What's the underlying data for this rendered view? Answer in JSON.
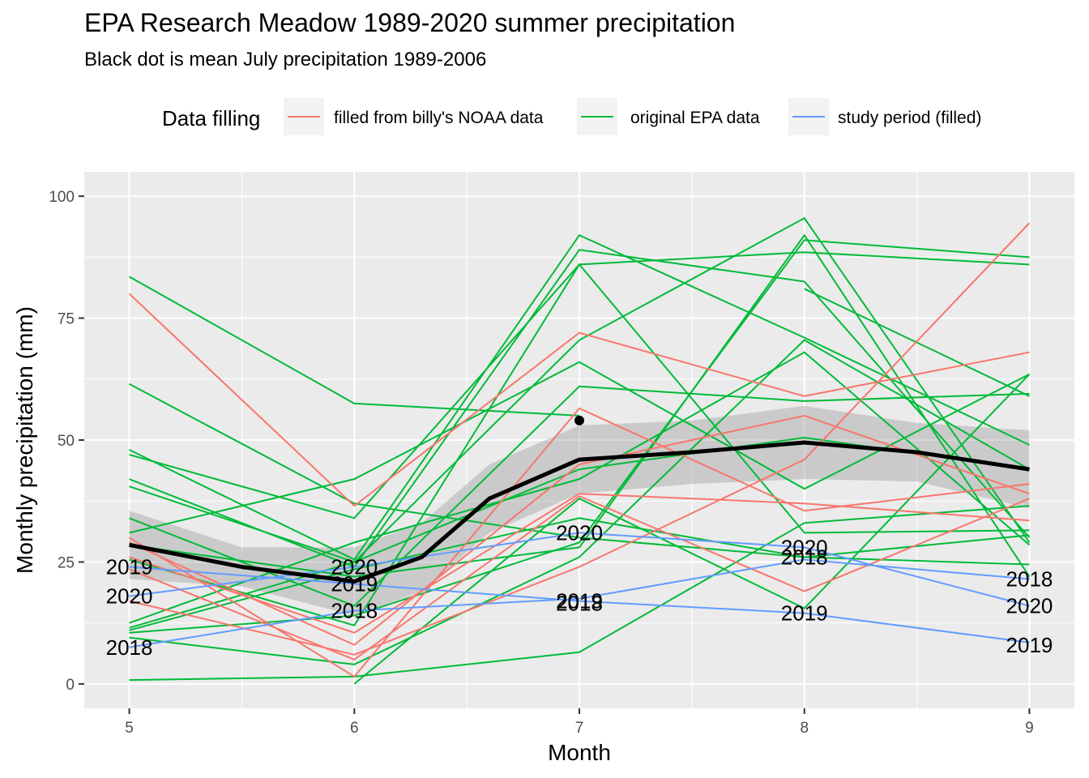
{
  "chart_data": {
    "type": "line",
    "title": "EPA Research Meadow 1989-2020 summer precipitation",
    "subtitle": "Black dot is mean July precipitation 1989-2006",
    "xlabel": "Month",
    "ylabel": "Monthly precipitation (mm)",
    "x": [
      5,
      6,
      7,
      8,
      9
    ],
    "x_ticks": [
      "5",
      "6",
      "7",
      "8",
      "9"
    ],
    "y_ticks": [
      "0",
      "25",
      "50",
      "75",
      "100"
    ],
    "xlim": [
      4.8,
      9.2
    ],
    "ylim": [
      -5,
      105
    ],
    "grid": true,
    "legend": {
      "title": "Data filling",
      "position": "top",
      "entries": [
        {
          "label": "filled from billy's NOAA data",
          "color": "#F8766D"
        },
        {
          "label": "original EPA data",
          "color": "#00BA38"
        },
        {
          "label": "study period (filled)",
          "color": "#619CFF"
        }
      ]
    },
    "series": [
      {
        "group": "original EPA data",
        "values": [
          83.5,
          57.5,
          55,
          null,
          null
        ]
      },
      {
        "group": "original EPA data",
        "values": [
          61.5,
          37,
          30,
          26,
          24.5
        ]
      },
      {
        "group": "original EPA data",
        "values": [
          48,
          25.5,
          92,
          71,
          49
        ]
      },
      {
        "group": "original EPA data",
        "values": [
          47,
          34,
          86,
          88.5,
          86
        ]
      },
      {
        "group": "original EPA data",
        "values": [
          42,
          24,
          89,
          82.5,
          30
        ]
      },
      {
        "group": "original EPA data",
        "values": [
          40.5,
          25,
          70.5,
          95.5,
          29
        ]
      },
      {
        "group": "original EPA data",
        "values": [
          34,
          16,
          61,
          58,
          59.5
        ]
      },
      {
        "group": "original EPA data",
        "values": [
          31,
          42,
          66,
          40,
          63.5
        ]
      },
      {
        "group": "original EPA data",
        "values": [
          28.5,
          22,
          28,
          92,
          22
        ]
      },
      {
        "group": "original EPA data",
        "values": [
          12.5,
          29,
          42,
          68,
          28.5
        ]
      },
      {
        "group": "original EPA data",
        "values": [
          11.5,
          25,
          44,
          50.5,
          44
        ]
      },
      {
        "group": "original EPA data",
        "values": [
          10.5,
          14,
          29,
          91,
          87.5
        ]
      },
      {
        "group": "original EPA data",
        "values": [
          9.5,
          4,
          26,
          70.5,
          44
        ]
      },
      {
        "group": "original EPA data",
        "values": [
          0.8,
          1.5,
          6.5,
          33,
          36.5
        ]
      },
      {
        "group": "original EPA data",
        "values": [
          null,
          0,
          38,
          15.5,
          63.5
        ]
      },
      {
        "group": "original EPA data",
        "values": [
          25.5,
          12,
          86,
          31,
          31.5
        ]
      },
      {
        "group": "original EPA data",
        "values": [
          11,
          23.5,
          34,
          26,
          30.5
        ]
      },
      {
        "group": "original EPA data",
        "values": [
          null,
          null,
          null,
          81,
          59
        ]
      },
      {
        "group": "filled from billy's NOAA data",
        "values": [
          80,
          36.5,
          72,
          59,
          68
        ]
      },
      {
        "group": "filled from billy's NOAA data",
        "values": [
          30,
          1.5,
          56.5,
          35.5,
          41
        ]
      },
      {
        "group": "filled from billy's NOAA data",
        "values": [
          29,
          8,
          45,
          55,
          39
        ]
      },
      {
        "group": "filled from billy's NOAA data",
        "values": [
          26,
          10.5,
          39,
          37,
          33.5
        ]
      },
      {
        "group": "filled from billy's NOAA data",
        "values": [
          17,
          6,
          24,
          46,
          94.5
        ]
      },
      {
        "group": "filled from billy's NOAA data",
        "values": [
          23.5,
          5,
          38.5,
          19,
          38
        ]
      },
      {
        "group": "study period (filled)",
        "year": "2018",
        "values": [
          7.5,
          15,
          17.5,
          25.5,
          21.5
        ]
      },
      {
        "group": "study period (filled)",
        "year": "2019",
        "values": [
          24,
          20.5,
          17,
          14.5,
          8.5
        ]
      },
      {
        "group": "study period (filled)",
        "year": "2020",
        "values": [
          18,
          24,
          31,
          28,
          16
        ]
      }
    ],
    "smooth": {
      "color": "#000000",
      "values": [
        [
          5,
          28.5
        ],
        [
          5.5,
          24
        ],
        [
          6,
          21
        ],
        [
          6.3,
          26
        ],
        [
          6.6,
          38
        ],
        [
          7,
          46
        ],
        [
          7.5,
          47.5
        ],
        [
          8,
          49.5
        ],
        [
          8.5,
          47.5
        ],
        [
          9,
          44
        ]
      ],
      "ci_upper": [
        [
          5,
          35.5
        ],
        [
          5.5,
          28
        ],
        [
          6,
          28
        ],
        [
          6.3,
          33
        ],
        [
          6.6,
          45
        ],
        [
          7,
          53
        ],
        [
          7.5,
          54
        ],
        [
          8,
          57
        ],
        [
          8.5,
          53.5
        ],
        [
          9,
          52
        ]
      ],
      "ci_lower": [
        [
          5,
          21.5
        ],
        [
          5.5,
          20
        ],
        [
          6,
          14
        ],
        [
          6.3,
          19
        ],
        [
          6.6,
          31
        ],
        [
          7,
          39
        ],
        [
          7.5,
          41
        ],
        [
          8,
          42
        ],
        [
          8.5,
          41.5
        ],
        [
          9,
          36
        ]
      ]
    },
    "mean_point": {
      "x": 7,
      "y": 54
    },
    "year_labels": [
      {
        "text": "2019",
        "x": 5,
        "y": 24
      },
      {
        "text": "2020",
        "x": 5,
        "y": 18
      },
      {
        "text": "2018",
        "x": 5,
        "y": 7.5
      },
      {
        "text": "2020",
        "x": 6,
        "y": 24
      },
      {
        "text": "2019",
        "x": 6,
        "y": 20.5
      },
      {
        "text": "2018",
        "x": 6,
        "y": 15
      },
      {
        "text": "2020",
        "x": 7,
        "y": 31
      },
      {
        "text": "2019",
        "x": 7,
        "y": 17
      },
      {
        "text": "2018",
        "x": 7,
        "y": 16.5
      },
      {
        "text": "2020",
        "x": 8,
        "y": 28
      },
      {
        "text": "2018",
        "x": 8,
        "y": 26
      },
      {
        "text": "2019",
        "x": 8,
        "y": 14.5
      },
      {
        "text": "2018",
        "x": 9,
        "y": 21.5
      },
      {
        "text": "2020",
        "x": 9,
        "y": 16
      },
      {
        "text": "2019",
        "x": 9,
        "y": 8
      }
    ]
  }
}
